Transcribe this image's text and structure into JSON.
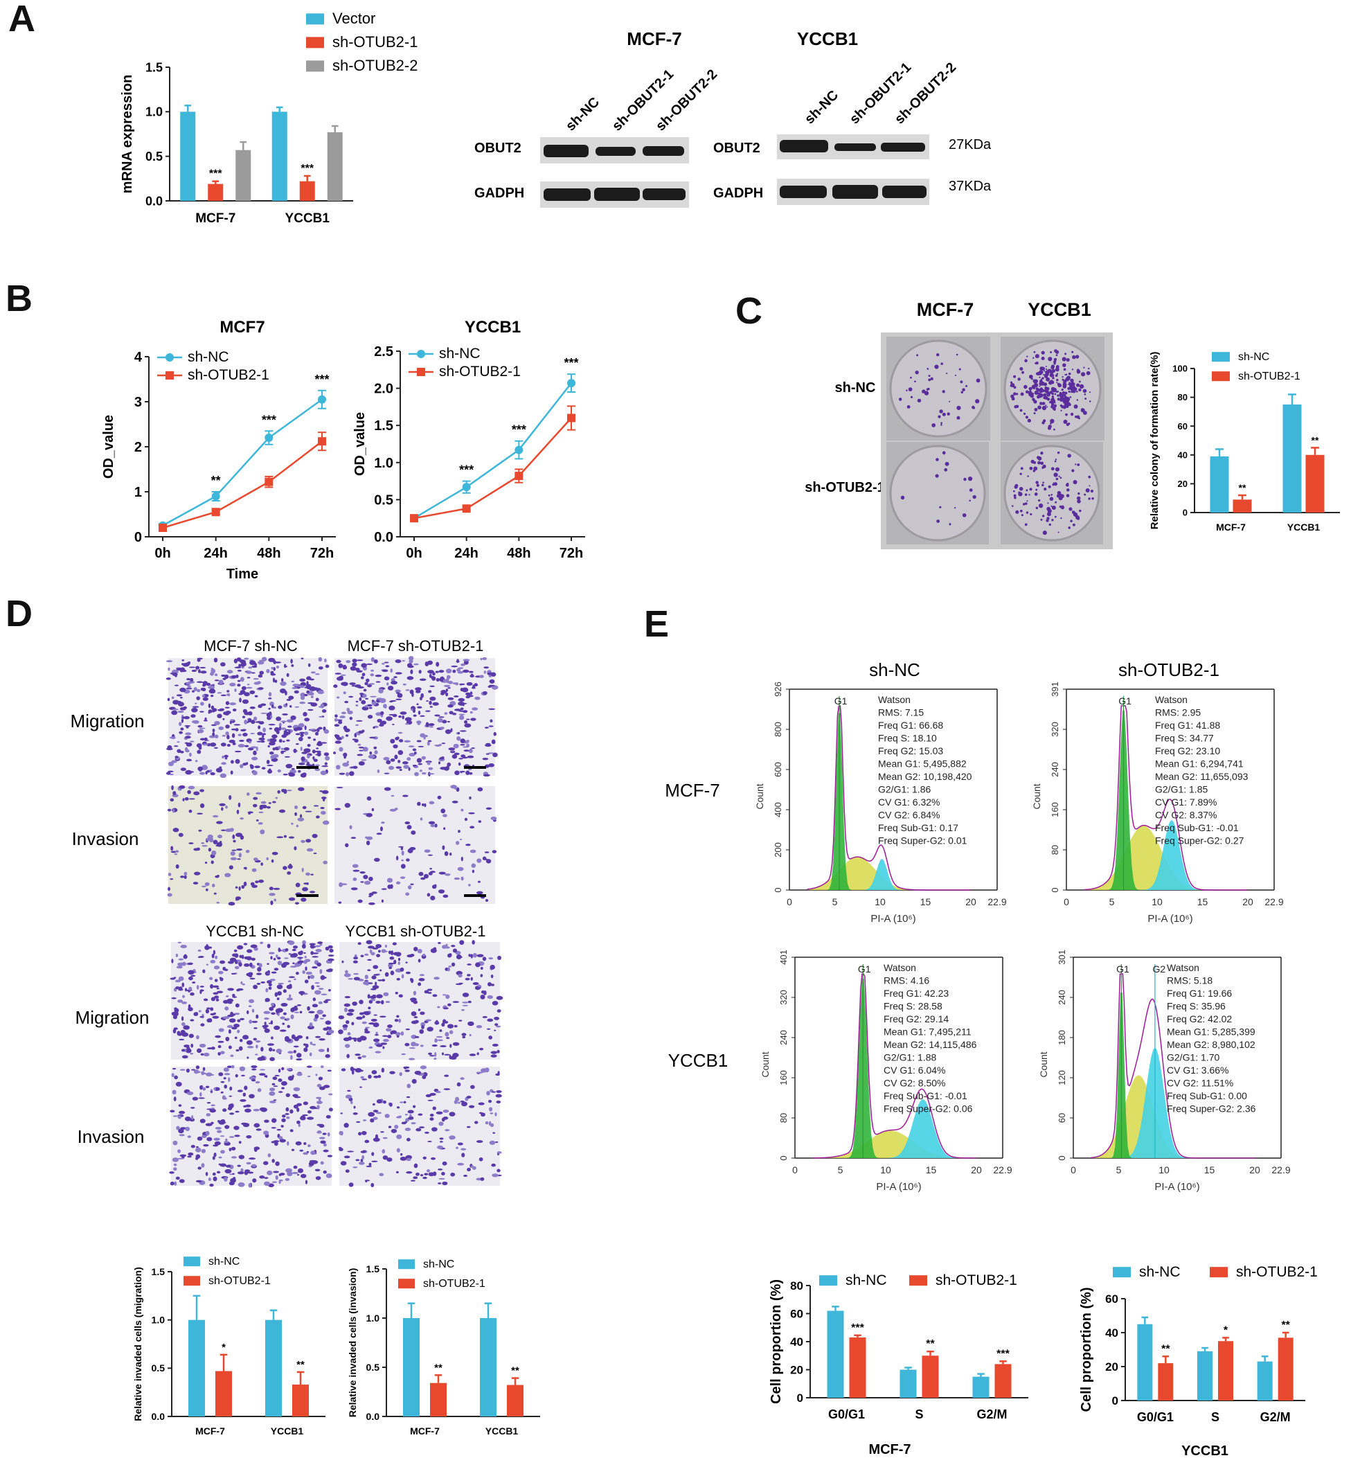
{
  "panels": {
    "A": "A",
    "B": "B",
    "C": "C",
    "D": "D",
    "E": "E"
  },
  "colors": {
    "nc": "#3db6d9",
    "sh1": "#e8492e",
    "sh2": "#9b9b9b",
    "err": "#555555"
  },
  "chart_data": [
    {
      "id": "A-mrna",
      "type": "bar",
      "ylabel": "mRNA expression",
      "ylim": [
        0,
        1.5
      ],
      "yticks": [
        "0.0",
        "0.5",
        "1.0",
        "1.5"
      ],
      "categories": [
        "MCF-7",
        "YCCB1"
      ],
      "series": [
        {
          "name": "Vector",
          "values": [
            1.0,
            1.0
          ],
          "err": [
            0.07,
            0.05
          ]
        },
        {
          "name": "sh-OTUB2-1",
          "values": [
            0.19,
            0.22
          ],
          "err": [
            0.03,
            0.06
          ]
        },
        {
          "name": "sh-OTUB2-2",
          "values": [
            0.57,
            0.77
          ],
          "err": [
            0.09,
            0.07
          ]
        }
      ],
      "annotations": [
        "***",
        "***"
      ]
    },
    {
      "id": "B-mcf7",
      "type": "line",
      "title": "MCF7",
      "xlabel": "Time",
      "ylabel": "OD_value",
      "x": [
        "0h",
        "24h",
        "48h",
        "72h"
      ],
      "ylim": [
        0,
        4
      ],
      "yticks": [
        "0",
        "1",
        "2",
        "3",
        "4"
      ],
      "series": [
        {
          "name": "sh-NC",
          "values": [
            0.25,
            0.9,
            2.2,
            3.05
          ],
          "err": [
            0.04,
            0.1,
            0.15,
            0.2
          ]
        },
        {
          "name": "sh-OTUB2-1",
          "values": [
            0.2,
            0.55,
            1.22,
            2.12
          ],
          "err": [
            0.03,
            0.06,
            0.12,
            0.2
          ]
        }
      ],
      "annotations": [
        "",
        "**",
        "***",
        "***"
      ]
    },
    {
      "id": "B-yccb1",
      "type": "line",
      "title": "YCCB1",
      "xlabel": "",
      "ylabel": "OD_value",
      "x": [
        "0h",
        "24h",
        "48h",
        "72h"
      ],
      "ylim": [
        0,
        2.5
      ],
      "yticks": [
        "0.0",
        "0.5",
        "1.0",
        "1.5",
        "2.0",
        "2.5"
      ],
      "series": [
        {
          "name": "sh-NC",
          "values": [
            0.25,
            0.67,
            1.17,
            2.07
          ],
          "err": [
            0.03,
            0.08,
            0.12,
            0.12
          ]
        },
        {
          "name": "sh-OTUB2-1",
          "values": [
            0.25,
            0.38,
            0.82,
            1.6
          ],
          "err": [
            0.02,
            0.03,
            0.09,
            0.16
          ]
        }
      ],
      "annotations": [
        "",
        "***",
        "***",
        "***"
      ]
    },
    {
      "id": "C-colony",
      "type": "bar",
      "ylabel": "Relative colony of formation rate(%)",
      "ylim": [
        0,
        100
      ],
      "yticks": [
        "0",
        "20",
        "40",
        "60",
        "80",
        "100"
      ],
      "categories": [
        "MCF-7",
        "YCCB1"
      ],
      "series": [
        {
          "name": "sh-NC",
          "values": [
            39,
            75
          ],
          "err": [
            5,
            7
          ]
        },
        {
          "name": "sh-OTUB2-1",
          "values": [
            9,
            40
          ],
          "err": [
            3,
            5
          ]
        }
      ],
      "annotations": [
        "**",
        "**"
      ]
    },
    {
      "id": "D-migration",
      "type": "bar",
      "ylabel": "Relative invaded cells (migration)",
      "ylim": [
        0,
        1.5
      ],
      "yticks": [
        "0.0",
        "0.5",
        "1.0",
        "1.5"
      ],
      "categories": [
        "MCF-7",
        "YCCB1"
      ],
      "series": [
        {
          "name": "sh-NC",
          "values": [
            1.0,
            1.0
          ],
          "err": [
            0.25,
            0.1
          ]
        },
        {
          "name": "sh-OTUB2-1",
          "values": [
            0.47,
            0.33
          ],
          "err": [
            0.17,
            0.13
          ]
        }
      ],
      "annotations": [
        "*",
        "**"
      ]
    },
    {
      "id": "D-invasion",
      "type": "bar",
      "ylabel": "Relative invaded cells (invasion)",
      "ylim": [
        0,
        1.5
      ],
      "yticks": [
        "0.0",
        "0.5",
        "1.0",
        "1.5"
      ],
      "categories": [
        "MCF-7",
        "YCCB1"
      ],
      "series": [
        {
          "name": "sh-NC",
          "values": [
            1.0,
            1.0
          ],
          "err": [
            0.15,
            0.15
          ]
        },
        {
          "name": "sh-OTUB2-1",
          "values": [
            0.34,
            0.32
          ],
          "err": [
            0.08,
            0.07
          ]
        }
      ],
      "annotations": [
        "**",
        "**"
      ]
    },
    {
      "id": "E-mcf7",
      "type": "bar",
      "title": "MCF-7",
      "ylabel": "Cell proportion (%)",
      "ylim": [
        0,
        80
      ],
      "yticks": [
        "0",
        "20",
        "40",
        "60",
        "80"
      ],
      "categories": [
        "G0/G1",
        "S",
        "G2/M"
      ],
      "series": [
        {
          "name": "sh-NC",
          "values": [
            62,
            20,
            15
          ],
          "err": [
            3,
            1.5,
            2
          ]
        },
        {
          "name": "sh-OTUB2-1",
          "values": [
            43,
            30,
            24
          ],
          "err": [
            1.5,
            3,
            2
          ]
        }
      ],
      "annotations": [
        "***",
        "**",
        "***"
      ]
    },
    {
      "id": "E-yccb1",
      "type": "bar",
      "title": "YCCB1",
      "ylabel": "Cell proportion (%)",
      "ylim": [
        0,
        60
      ],
      "yticks": [
        "0",
        "20",
        "40",
        "60"
      ],
      "categories": [
        "G0/G1",
        "S",
        "G2/M"
      ],
      "series": [
        {
          "name": "sh-NC",
          "values": [
            45,
            29,
            23
          ],
          "err": [
            4,
            2,
            3
          ]
        },
        {
          "name": "sh-OTUB2-1",
          "values": [
            22,
            35,
            37
          ],
          "err": [
            4,
            2,
            3
          ]
        }
      ],
      "annotations": [
        "**",
        "*",
        "**"
      ]
    }
  ],
  "western": {
    "title_mcf7": "MCF-7",
    "title_yccb1": "YCCB1",
    "lanes_mcf7": [
      "sh-NC",
      "sh-OBUT2-1",
      "sh-OBUT2-2"
    ],
    "lanes_yccb1": [
      "sh-NC",
      "sh-OBUT2-1",
      "sh-OBUT2-2"
    ],
    "row1": "OBUT2",
    "row2": "GADPH",
    "kda1": "27KDa",
    "kda2": "37KDa"
  },
  "colony": {
    "col1": "MCF-7",
    "col2": "YCCB1",
    "row1": "sh-NC",
    "row2": "sh-OTUB2-1"
  },
  "transwell": {
    "top_title1": "MCF-7 sh-NC",
    "top_title2": "MCF-7  sh-OTUB2-1",
    "bottom_title1": "YCCB1  sh-NC",
    "bottom_title2": "YCCB1  sh-OTUB2-1",
    "migration": "Migration",
    "invasion": "Invasion"
  },
  "flow": {
    "col1": "sh-NC",
    "col2": "sh-OTUB2-1",
    "row1": "MCF-7",
    "row2": "YCCB1",
    "ylabel": "Count",
    "xlabel": "PI-A (10⁶)",
    "xticks": [
      "0",
      "5",
      "10",
      "15",
      "20",
      "22.9"
    ],
    "plots": [
      {
        "yticks": [
          "0",
          "200",
          "400",
          "600",
          "800",
          "926"
        ],
        "peaks": [
          "G1"
        ],
        "stats": [
          "Watson",
          "RMS: 7.15",
          "Freq G1: 66.68",
          "Freq S: 18.10",
          "Freq G2: 15.03",
          "Mean G1: 5,495,882",
          "Mean G2: 10,198,420",
          "G2/G1: 1.86",
          "CV G1: 6.32%",
          "CV G2: 6.84%",
          "Freq Sub-G1: 0.17",
          "Freq Super-G2: 0.01"
        ]
      },
      {
        "yticks": [
          "0",
          "80",
          "160",
          "240",
          "320",
          "391"
        ],
        "peaks": [
          "G1"
        ],
        "stats": [
          "Watson",
          "RMS: 2.95",
          "Freq G1: 41.88",
          "Freq S: 34.77",
          "Freq G2: 23.10",
          "Mean G1: 6,294,741",
          "Mean G2: 11,655,093",
          "G2/G1: 1.85",
          "CV G1: 7.89%",
          "CV G2: 8.37%",
          "Freq Sub-G1: -0.01",
          "Freq Super-G2: 0.27"
        ]
      },
      {
        "yticks": [
          "0",
          "80",
          "160",
          "240",
          "320",
          "401"
        ],
        "peaks": [
          "G1"
        ],
        "stats": [
          "Watson",
          "RMS: 4.16",
          "Freq G1: 42.23",
          "Freq S: 28.58",
          "Freq G2: 29.14",
          "Mean G1: 7,495,211",
          "Mean G2: 14,115,486",
          "G2/G1: 1.88",
          "CV G1: 6.04%",
          "CV G2: 8.50%",
          "Freq Sub-G1: -0.01",
          "Freq Super-G2: 0.06"
        ]
      },
      {
        "yticks": [
          "0",
          "60",
          "120",
          "180",
          "240",
          "301"
        ],
        "peaks": [
          "G1",
          "G2"
        ],
        "stats": [
          "Watson",
          "RMS: 5.18",
          "Freq G1: 19.66",
          "Freq S: 35.96",
          "Freq G2: 42.02",
          "Mean G1: 5,285,399",
          "Mean G2: 8,980,102",
          "G2/G1: 1.70",
          "CV G1: 3.66%",
          "CV G2: 11.51%",
          "Freq Sub-G1: 0.00",
          "Freq Super-G2: 2.36"
        ]
      }
    ]
  }
}
